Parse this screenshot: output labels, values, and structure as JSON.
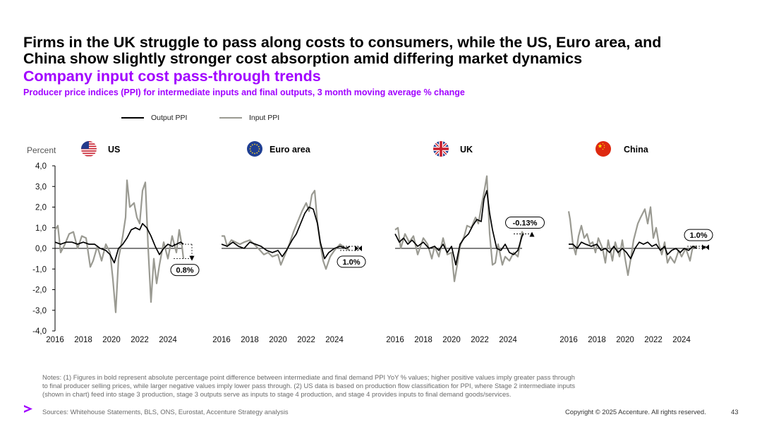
{
  "header": {
    "title_line1": "Firms in the UK struggle to pass along costs to consumers, while the US, Euro area, and",
    "title_line2": "China show slightly stronger cost absorption amid differing market dynamics",
    "subtitle": "Company input cost pass-through trends",
    "subsubtitle": "Producer price indices (PPI) for intermediate inputs and final outputs, 3 month moving average % change"
  },
  "colors": {
    "accent": "#a100ff",
    "output_line": "#000000",
    "input_line": "#9a9a92"
  },
  "chart_data": {
    "type": "line",
    "ylabel": "Percent",
    "ylim": [
      -4,
      4
    ],
    "yticks": [
      "4,0",
      "3,0",
      "2,0",
      "1,0",
      "0,0",
      "-1,0",
      "-2,0",
      "-3,0",
      "-4,0"
    ],
    "xticks": [
      "2016",
      "2018",
      "2020",
      "2022",
      "2024"
    ],
    "legend": [
      {
        "name": "Output PPI",
        "color": "#000000"
      },
      {
        "name": "Input PPI",
        "color": "#9a9a92"
      }
    ],
    "panels": [
      {
        "name": "US",
        "flag": "us-flag",
        "annotation": "0.8%",
        "annotation_position": "below",
        "annotation_direction": "down",
        "output": [
          [
            2016.0,
            0.3
          ],
          [
            2016.4,
            0.2
          ],
          [
            2016.8,
            0.3
          ],
          [
            2017.2,
            0.3
          ],
          [
            2017.6,
            0.2
          ],
          [
            2018.0,
            0.3
          ],
          [
            2018.4,
            0.2
          ],
          [
            2018.8,
            0.2
          ],
          [
            2019.2,
            0.0
          ],
          [
            2019.6,
            -0.1
          ],
          [
            2019.9,
            -0.3
          ],
          [
            2020.2,
            -0.7
          ],
          [
            2020.5,
            0.0
          ],
          [
            2020.8,
            0.2
          ],
          [
            2021.1,
            0.5
          ],
          [
            2021.4,
            0.9
          ],
          [
            2021.7,
            1.0
          ],
          [
            2022.0,
            0.9
          ],
          [
            2022.2,
            1.2
          ],
          [
            2022.5,
            1.0
          ],
          [
            2022.8,
            0.6
          ],
          [
            2023.1,
            0.1
          ],
          [
            2023.4,
            -0.3
          ],
          [
            2023.7,
            0.0
          ],
          [
            2024.0,
            0.2
          ],
          [
            2024.3,
            0.1
          ],
          [
            2024.6,
            0.2
          ],
          [
            2024.9,
            0.3
          ],
          [
            2025.1,
            0.2
          ]
        ],
        "input": [
          [
            2016.0,
            0.9
          ],
          [
            2016.2,
            1.1
          ],
          [
            2016.4,
            -0.2
          ],
          [
            2016.7,
            0.2
          ],
          [
            2017.0,
            0.7
          ],
          [
            2017.3,
            0.8
          ],
          [
            2017.6,
            0.0
          ],
          [
            2017.9,
            0.6
          ],
          [
            2018.2,
            0.5
          ],
          [
            2018.5,
            -0.9
          ],
          [
            2018.7,
            -0.6
          ],
          [
            2019.0,
            0.1
          ],
          [
            2019.3,
            -0.6
          ],
          [
            2019.6,
            0.2
          ],
          [
            2019.9,
            -0.2
          ],
          [
            2020.1,
            -1.5
          ],
          [
            2020.3,
            -3.1
          ],
          [
            2020.5,
            -0.5
          ],
          [
            2020.8,
            0.6
          ],
          [
            2021.0,
            1.5
          ],
          [
            2021.1,
            3.3
          ],
          [
            2021.3,
            2.0
          ],
          [
            2021.6,
            2.2
          ],
          [
            2021.8,
            1.5
          ],
          [
            2022.0,
            1.2
          ],
          [
            2022.2,
            2.8
          ],
          [
            2022.4,
            3.2
          ],
          [
            2022.6,
            0.0
          ],
          [
            2022.8,
            -2.6
          ],
          [
            2023.0,
            -0.5
          ],
          [
            2023.2,
            -1.7
          ],
          [
            2023.4,
            -0.8
          ],
          [
            2023.7,
            0.3
          ],
          [
            2024.0,
            -0.5
          ],
          [
            2024.3,
            0.6
          ],
          [
            2024.6,
            -0.2
          ],
          [
            2024.8,
            0.9
          ],
          [
            2025.0,
            0.1
          ],
          [
            2025.1,
            -0.5
          ]
        ]
      },
      {
        "name": "Euro area",
        "flag": "eu-flag",
        "annotation": "1.0%",
        "annotation_position": "below",
        "annotation_direction": "flat",
        "output": [
          [
            2016.0,
            0.2
          ],
          [
            2016.4,
            0.1
          ],
          [
            2016.8,
            0.3
          ],
          [
            2017.2,
            0.1
          ],
          [
            2017.6,
            0.0
          ],
          [
            2018.0,
            0.3
          ],
          [
            2018.4,
            0.2
          ],
          [
            2018.8,
            0.1
          ],
          [
            2019.2,
            -0.1
          ],
          [
            2019.6,
            -0.2
          ],
          [
            2020.0,
            -0.1
          ],
          [
            2020.3,
            -0.4
          ],
          [
            2020.6,
            -0.1
          ],
          [
            2021.0,
            0.4
          ],
          [
            2021.3,
            0.7
          ],
          [
            2021.6,
            1.2
          ],
          [
            2021.9,
            1.7
          ],
          [
            2022.2,
            2.0
          ],
          [
            2022.5,
            1.9
          ],
          [
            2022.8,
            1.2
          ],
          [
            2023.0,
            0.3
          ],
          [
            2023.3,
            -0.5
          ],
          [
            2023.6,
            -0.2
          ],
          [
            2024.0,
            0.0
          ],
          [
            2024.4,
            0.1
          ],
          [
            2024.8,
            0.0
          ],
          [
            2025.1,
            0.1
          ]
        ],
        "input": [
          [
            2016.0,
            0.6
          ],
          [
            2016.2,
            0.6
          ],
          [
            2016.4,
            0.1
          ],
          [
            2016.7,
            0.4
          ],
          [
            2017.0,
            0.3
          ],
          [
            2017.3,
            0.2
          ],
          [
            2017.6,
            0.3
          ],
          [
            2018.0,
            0.4
          ],
          [
            2018.3,
            0.2
          ],
          [
            2018.6,
            0.0
          ],
          [
            2019.0,
            -0.3
          ],
          [
            2019.3,
            -0.2
          ],
          [
            2019.6,
            -0.4
          ],
          [
            2020.0,
            -0.3
          ],
          [
            2020.2,
            -0.8
          ],
          [
            2020.5,
            -0.3
          ],
          [
            2020.8,
            0.2
          ],
          [
            2021.1,
            0.8
          ],
          [
            2021.4,
            1.3
          ],
          [
            2021.7,
            1.8
          ],
          [
            2022.0,
            2.2
          ],
          [
            2022.2,
            1.8
          ],
          [
            2022.4,
            2.6
          ],
          [
            2022.6,
            2.8
          ],
          [
            2022.8,
            1.2
          ],
          [
            2023.0,
            0.2
          ],
          [
            2023.2,
            -0.6
          ],
          [
            2023.4,
            -1.0
          ],
          [
            2023.7,
            -0.4
          ],
          [
            2024.0,
            -0.1
          ],
          [
            2024.4,
            0.2
          ],
          [
            2024.8,
            0.0
          ],
          [
            2025.1,
            -0.1
          ]
        ]
      },
      {
        "name": "UK",
        "flag": "uk-flag",
        "annotation": "-0.13%",
        "annotation_position": "above",
        "annotation_direction": "up",
        "output": [
          [
            2016.0,
            0.7
          ],
          [
            2016.3,
            0.3
          ],
          [
            2016.6,
            0.5
          ],
          [
            2016.9,
            0.2
          ],
          [
            2017.2,
            0.4
          ],
          [
            2017.6,
            0.1
          ],
          [
            2018.0,
            0.3
          ],
          [
            2018.4,
            0.0
          ],
          [
            2018.8,
            0.1
          ],
          [
            2019.1,
            -0.1
          ],
          [
            2019.4,
            0.2
          ],
          [
            2019.7,
            -0.2
          ],
          [
            2020.0,
            0.1
          ],
          [
            2020.3,
            -0.8
          ],
          [
            2020.6,
            0.2
          ],
          [
            2020.9,
            0.5
          ],
          [
            2021.2,
            0.7
          ],
          [
            2021.5,
            1.1
          ],
          [
            2021.8,
            1.4
          ],
          [
            2022.1,
            1.3
          ],
          [
            2022.3,
            2.4
          ],
          [
            2022.5,
            2.8
          ],
          [
            2022.7,
            1.7
          ],
          [
            2022.9,
            0.9
          ],
          [
            2023.2,
            0.0
          ],
          [
            2023.5,
            -0.1
          ],
          [
            2023.8,
            0.2
          ],
          [
            2024.1,
            -0.2
          ],
          [
            2024.4,
            -0.3
          ],
          [
            2024.7,
            -0.1
          ],
          [
            2025.0,
            0.6
          ],
          [
            2025.1,
            0.7
          ]
        ],
        "input": [
          [
            2016.0,
            0.9
          ],
          [
            2016.2,
            1.0
          ],
          [
            2016.4,
            0.0
          ],
          [
            2016.7,
            0.7
          ],
          [
            2017.0,
            0.3
          ],
          [
            2017.3,
            0.6
          ],
          [
            2017.6,
            -0.3
          ],
          [
            2018.0,
            0.5
          ],
          [
            2018.3,
            0.2
          ],
          [
            2018.6,
            -0.5
          ],
          [
            2018.8,
            0.1
          ],
          [
            2019.1,
            -0.4
          ],
          [
            2019.4,
            0.5
          ],
          [
            2019.7,
            -0.3
          ],
          [
            2020.0,
            -0.2
          ],
          [
            2020.2,
            -1.6
          ],
          [
            2020.4,
            -0.8
          ],
          [
            2020.6,
            0.1
          ],
          [
            2020.9,
            0.6
          ],
          [
            2021.1,
            1.1
          ],
          [
            2021.4,
            1.0
          ],
          [
            2021.7,
            1.5
          ],
          [
            2021.9,
            1.2
          ],
          [
            2022.1,
            2.0
          ],
          [
            2022.3,
            2.7
          ],
          [
            2022.5,
            3.5
          ],
          [
            2022.7,
            0.7
          ],
          [
            2022.9,
            -0.8
          ],
          [
            2023.1,
            -0.7
          ],
          [
            2023.3,
            0.2
          ],
          [
            2023.6,
            -0.8
          ],
          [
            2023.8,
            -0.4
          ],
          [
            2024.1,
            -0.6
          ],
          [
            2024.4,
            -0.2
          ],
          [
            2024.7,
            -0.4
          ],
          [
            2025.0,
            0.8
          ],
          [
            2025.1,
            0.7
          ]
        ]
      },
      {
        "name": "China",
        "flag": "china-flag",
        "annotation": "1.0%",
        "annotation_position": "above",
        "annotation_direction": "flat",
        "output": [
          [
            2016.0,
            0.2
          ],
          [
            2016.3,
            0.2
          ],
          [
            2016.6,
            0.0
          ],
          [
            2016.9,
            0.3
          ],
          [
            2017.2,
            0.2
          ],
          [
            2017.6,
            0.1
          ],
          [
            2018.0,
            0.2
          ],
          [
            2018.3,
            -0.1
          ],
          [
            2018.6,
            0.0
          ],
          [
            2018.9,
            -0.2
          ],
          [
            2019.2,
            0.1
          ],
          [
            2019.5,
            -0.2
          ],
          [
            2019.8,
            0.0
          ],
          [
            2020.1,
            -0.2
          ],
          [
            2020.4,
            -0.5
          ],
          [
            2020.7,
            0.0
          ],
          [
            2021.0,
            0.3
          ],
          [
            2021.3,
            0.2
          ],
          [
            2021.6,
            0.3
          ],
          [
            2021.9,
            0.1
          ],
          [
            2022.2,
            0.2
          ],
          [
            2022.5,
            -0.1
          ],
          [
            2022.8,
            0.1
          ],
          [
            2023.0,
            -0.3
          ],
          [
            2023.3,
            -0.1
          ],
          [
            2023.6,
            0.0
          ],
          [
            2023.9,
            -0.2
          ],
          [
            2024.2,
            0.0
          ],
          [
            2024.5,
            -0.1
          ],
          [
            2024.8,
            0.1
          ],
          [
            2025.1,
            0.0
          ]
        ],
        "input": [
          [
            2016.0,
            1.8
          ],
          [
            2016.1,
            1.4
          ],
          [
            2016.3,
            0.2
          ],
          [
            2016.5,
            -0.3
          ],
          [
            2016.7,
            0.6
          ],
          [
            2016.9,
            1.1
          ],
          [
            2017.1,
            0.5
          ],
          [
            2017.3,
            0.7
          ],
          [
            2017.5,
            0.2
          ],
          [
            2017.7,
            0.3
          ],
          [
            2017.9,
            -0.2
          ],
          [
            2018.1,
            0.5
          ],
          [
            2018.4,
            0.0
          ],
          [
            2018.6,
            -0.7
          ],
          [
            2018.8,
            0.4
          ],
          [
            2019.1,
            -0.6
          ],
          [
            2019.3,
            0.3
          ],
          [
            2019.6,
            -0.4
          ],
          [
            2019.8,
            0.4
          ],
          [
            2020.0,
            -0.5
          ],
          [
            2020.2,
            -1.3
          ],
          [
            2020.4,
            -0.5
          ],
          [
            2020.6,
            0.4
          ],
          [
            2020.9,
            1.2
          ],
          [
            2021.1,
            1.5
          ],
          [
            2021.4,
            1.9
          ],
          [
            2021.6,
            1.2
          ],
          [
            2021.8,
            2.0
          ],
          [
            2022.0,
            0.5
          ],
          [
            2022.2,
            1.0
          ],
          [
            2022.4,
            0.2
          ],
          [
            2022.6,
            -0.3
          ],
          [
            2022.8,
            0.3
          ],
          [
            2023.0,
            -0.7
          ],
          [
            2023.2,
            -0.4
          ],
          [
            2023.5,
            -0.7
          ],
          [
            2023.8,
            -0.1
          ],
          [
            2024.0,
            -0.4
          ],
          [
            2024.3,
            0.0
          ],
          [
            2024.6,
            -0.6
          ],
          [
            2024.8,
            0.1
          ],
          [
            2025.1,
            0.1
          ]
        ]
      }
    ]
  },
  "footer": {
    "notes": "Notes: (1) Figures in bold represent absolute percentage point difference between intermediate and final demand PPI YoY % values; higher positive values imply greater pass through to final producer selling prices, while larger negative values imply lower pass through. (2) US data is based on production flow classification for PPI, where Stage 2 intermediate inputs (shown in chart) feed into stage 3 production, stage 3 outputs serve as inputs to stage 4 production, and stage 4 provides inputs to final demand goods/services.",
    "sources": "Sources: Whitehouse Statements, BLS, ONS, Eurostat, Accenture Strategy analysis",
    "copyright": "Copyright © 2025 Accenture. All rights reserved.",
    "page_number": "43"
  }
}
